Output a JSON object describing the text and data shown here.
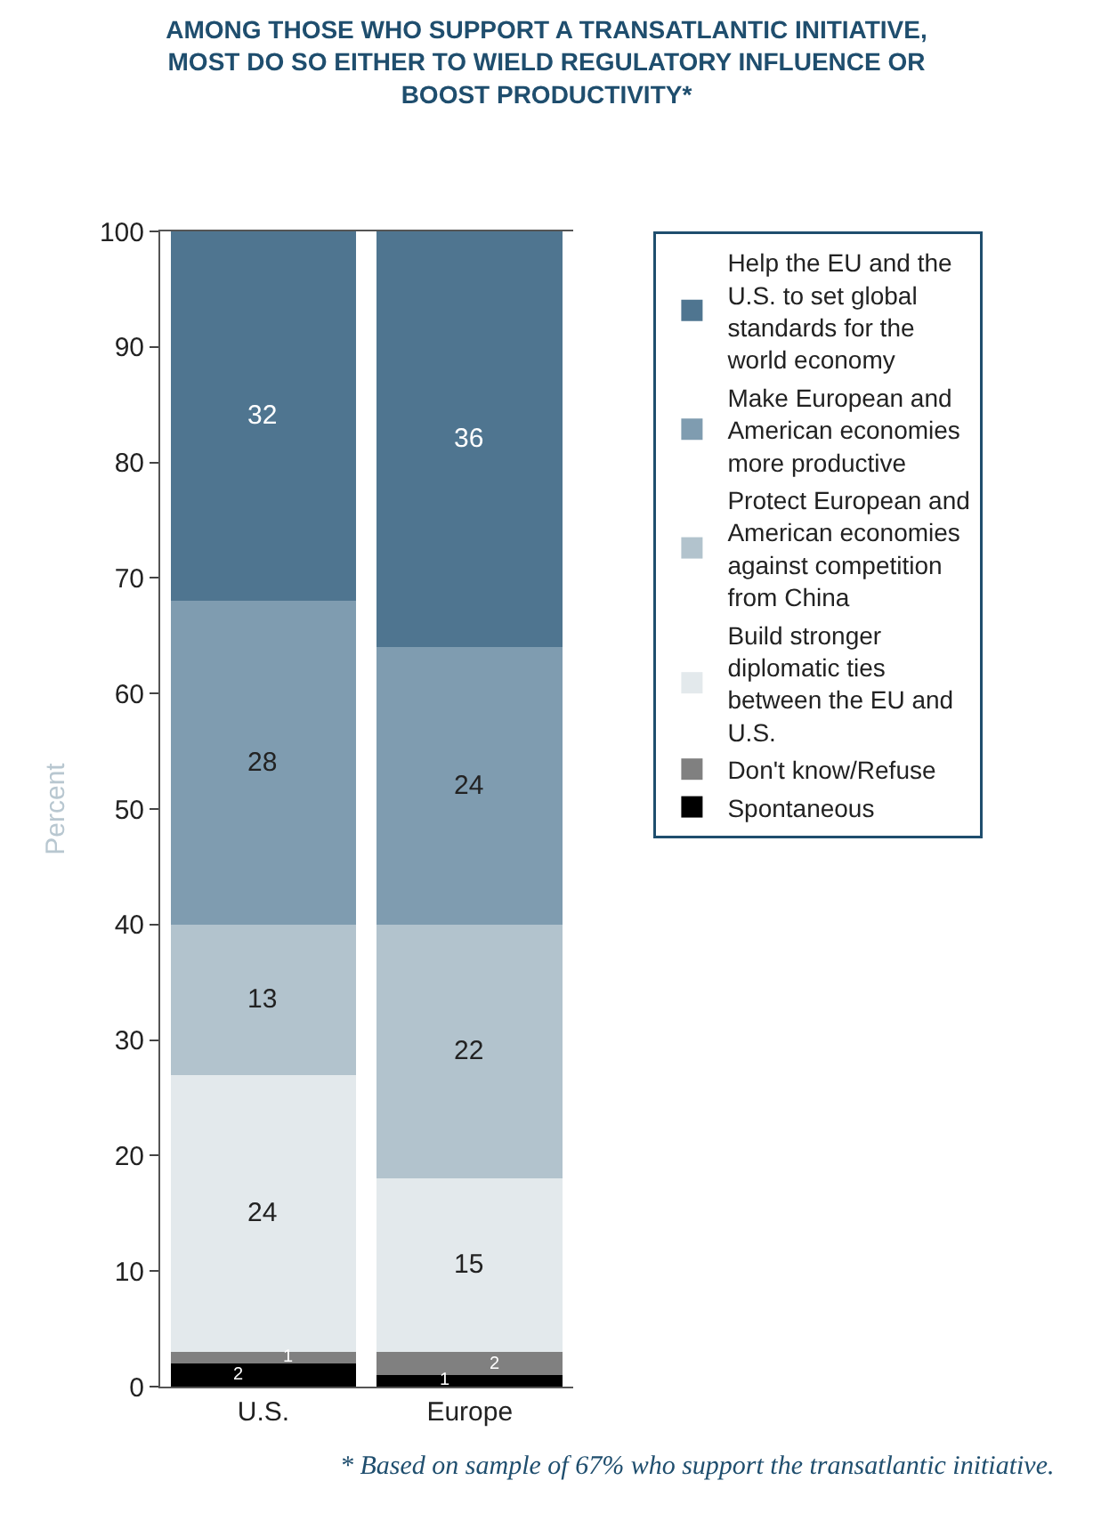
{
  "chart_data": {
    "type": "bar",
    "title": "AMONG THOSE WHO SUPPORT A TRANSATLANTIC INITIATIVE, MOST DO SO EITHER TO WIELD REGULATORY INFLUENCE OR BOOST PRODUCTIVITY*",
    "ylabel": "Percent",
    "categories": [
      "U.S.",
      "Europe"
    ],
    "stacked": true,
    "data_labels": true,
    "legend": "right",
    "ylim": [
      0,
      100
    ],
    "yticks": [
      0,
      10,
      20,
      30,
      40,
      50,
      60,
      70,
      80,
      90,
      100
    ],
    "series": [
      {
        "name": "Spontaneous",
        "color": "#000000",
        "values": [
          2,
          1
        ]
      },
      {
        "name": "Don't know/Refuse",
        "color": "#808080",
        "values": [
          1,
          2
        ]
      },
      {
        "name": "Build stronger diplomatic ties between the EU and U.S.",
        "color": "#e3e9ec",
        "values": [
          24,
          15
        ]
      },
      {
        "name": "Protect European and American economies against competition from China",
        "color": "#b2c3cd",
        "values": [
          13,
          22
        ]
      },
      {
        "name": "Make European and American economies more productive",
        "color": "#7f9cb0",
        "values": [
          28,
          24
        ]
      },
      {
        "name": "Help the EU and the U.S. to set global standards for the world economy",
        "color": "#4f7590",
        "values": [
          32,
          36
        ]
      }
    ],
    "annotations": [
      "* Based on sample of 67% who support the transatlantic initiative."
    ]
  }
}
